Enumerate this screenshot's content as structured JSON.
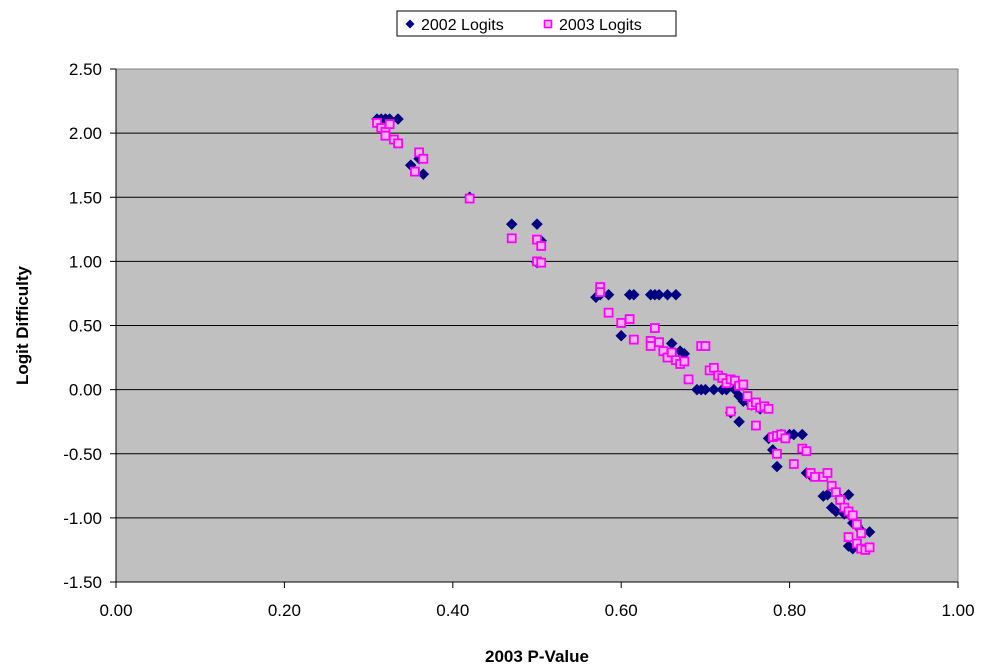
{
  "chart_data": {
    "type": "scatter",
    "title": "",
    "xlabel": "2003 P-Value",
    "ylabel": "Logit Difficulty",
    "xlim": [
      0,
      1
    ],
    "ylim": [
      -1.5,
      2.5
    ],
    "xticks": [
      "0.00",
      "0.20",
      "0.40",
      "0.60",
      "0.80",
      "1.00"
    ],
    "yticks": [
      "2.50",
      "2.00",
      "1.50",
      "1.00",
      "0.50",
      "0.00",
      "-0.50",
      "-1.00",
      "-1.50"
    ],
    "grid": "horizontal",
    "legend": "top-center",
    "plot_background": "#c0c0c0",
    "series": [
      {
        "name": "2002 Logits",
        "color": "#000080",
        "marker": "diamond",
        "points": [
          [
            0.31,
            2.11
          ],
          [
            0.315,
            2.11
          ],
          [
            0.32,
            2.11
          ],
          [
            0.325,
            2.11
          ],
          [
            0.335,
            2.11
          ],
          [
            0.35,
            1.75
          ],
          [
            0.36,
            1.8
          ],
          [
            0.365,
            1.68
          ],
          [
            0.42,
            1.5
          ],
          [
            0.47,
            1.29
          ],
          [
            0.5,
            1.29
          ],
          [
            0.505,
            1.16
          ],
          [
            0.5,
            0.99
          ],
          [
            0.57,
            0.72
          ],
          [
            0.575,
            0.74
          ],
          [
            0.585,
            0.74
          ],
          [
            0.61,
            0.74
          ],
          [
            0.615,
            0.74
          ],
          [
            0.635,
            0.74
          ],
          [
            0.64,
            0.74
          ],
          [
            0.645,
            0.74
          ],
          [
            0.655,
            0.74
          ],
          [
            0.665,
            0.74
          ],
          [
            0.6,
            0.42
          ],
          [
            0.66,
            0.36
          ],
          [
            0.67,
            0.3
          ],
          [
            0.675,
            0.28
          ],
          [
            0.69,
            0.0
          ],
          [
            0.695,
            0.0
          ],
          [
            0.7,
            0.0
          ],
          [
            0.71,
            0.0
          ],
          [
            0.72,
            0.0
          ],
          [
            0.725,
            0.0
          ],
          [
            0.735,
            0.0
          ],
          [
            0.74,
            -0.05
          ],
          [
            0.745,
            -0.09
          ],
          [
            0.75,
            -0.09
          ],
          [
            0.755,
            -0.12
          ],
          [
            0.76,
            -0.11
          ],
          [
            0.765,
            -0.15
          ],
          [
            0.73,
            -0.18
          ],
          [
            0.74,
            -0.25
          ],
          [
            0.775,
            -0.38
          ],
          [
            0.78,
            -0.47
          ],
          [
            0.785,
            -0.6
          ],
          [
            0.79,
            -0.35
          ],
          [
            0.8,
            -0.35
          ],
          [
            0.805,
            -0.35
          ],
          [
            0.815,
            -0.35
          ],
          [
            0.82,
            -0.65
          ],
          [
            0.825,
            -0.67
          ],
          [
            0.84,
            -0.83
          ],
          [
            0.845,
            -0.82
          ],
          [
            0.85,
            -0.92
          ],
          [
            0.855,
            -0.95
          ],
          [
            0.86,
            -0.85
          ],
          [
            0.865,
            -0.97
          ],
          [
            0.87,
            -0.82
          ],
          [
            0.875,
            -1.04
          ],
          [
            0.88,
            -1.06
          ],
          [
            0.885,
            -1.1
          ],
          [
            0.87,
            -1.22
          ],
          [
            0.875,
            -1.24
          ],
          [
            0.895,
            -1.11
          ]
        ]
      },
      {
        "name": "2003 Logits",
        "color": "#ff00ff",
        "marker": "square",
        "points": [
          [
            0.31,
            2.08
          ],
          [
            0.315,
            2.04
          ],
          [
            0.32,
            2.01
          ],
          [
            0.32,
            1.98
          ],
          [
            0.325,
            2.07
          ],
          [
            0.33,
            1.95
          ],
          [
            0.335,
            1.92
          ],
          [
            0.355,
            1.7
          ],
          [
            0.36,
            1.85
          ],
          [
            0.365,
            1.8
          ],
          [
            0.42,
            1.49
          ],
          [
            0.47,
            1.18
          ],
          [
            0.5,
            1.17
          ],
          [
            0.505,
            1.12
          ],
          [
            0.5,
            1.0
          ],
          [
            0.505,
            0.99
          ],
          [
            0.575,
            0.8
          ],
          [
            0.575,
            0.76
          ],
          [
            0.585,
            0.6
          ],
          [
            0.6,
            0.52
          ],
          [
            0.61,
            0.55
          ],
          [
            0.615,
            0.39
          ],
          [
            0.635,
            0.38
          ],
          [
            0.635,
            0.34
          ],
          [
            0.64,
            0.48
          ],
          [
            0.645,
            0.37
          ],
          [
            0.65,
            0.3
          ],
          [
            0.655,
            0.25
          ],
          [
            0.66,
            0.29
          ],
          [
            0.665,
            0.23
          ],
          [
            0.67,
            0.2
          ],
          [
            0.675,
            0.22
          ],
          [
            0.68,
            0.08
          ],
          [
            0.695,
            0.34
          ],
          [
            0.7,
            0.34
          ],
          [
            0.705,
            0.15
          ],
          [
            0.71,
            0.17
          ],
          [
            0.715,
            0.11
          ],
          [
            0.72,
            0.09
          ],
          [
            0.725,
            0.05
          ],
          [
            0.73,
            0.08
          ],
          [
            0.735,
            0.07
          ],
          [
            0.74,
            0.03
          ],
          [
            0.745,
            0.04
          ],
          [
            0.75,
            -0.05
          ],
          [
            0.755,
            -0.12
          ],
          [
            0.76,
            -0.1
          ],
          [
            0.765,
            -0.14
          ],
          [
            0.77,
            -0.13
          ],
          [
            0.775,
            -0.15
          ],
          [
            0.76,
            -0.28
          ],
          [
            0.73,
            -0.17
          ],
          [
            0.78,
            -0.37
          ],
          [
            0.785,
            -0.36
          ],
          [
            0.79,
            -0.35
          ],
          [
            0.795,
            -0.38
          ],
          [
            0.785,
            -0.5
          ],
          [
            0.805,
            -0.58
          ],
          [
            0.815,
            -0.46
          ],
          [
            0.82,
            -0.48
          ],
          [
            0.825,
            -0.65
          ],
          [
            0.83,
            -0.68
          ],
          [
            0.84,
            -0.68
          ],
          [
            0.845,
            -0.65
          ],
          [
            0.85,
            -0.75
          ],
          [
            0.855,
            -0.8
          ],
          [
            0.86,
            -0.86
          ],
          [
            0.865,
            -0.92
          ],
          [
            0.87,
            -0.95
          ],
          [
            0.875,
            -0.98
          ],
          [
            0.88,
            -1.05
          ],
          [
            0.885,
            -1.12
          ],
          [
            0.87,
            -1.15
          ],
          [
            0.88,
            -1.2
          ],
          [
            0.885,
            -1.24
          ],
          [
            0.89,
            -1.25
          ],
          [
            0.895,
            -1.23
          ]
        ]
      }
    ]
  }
}
